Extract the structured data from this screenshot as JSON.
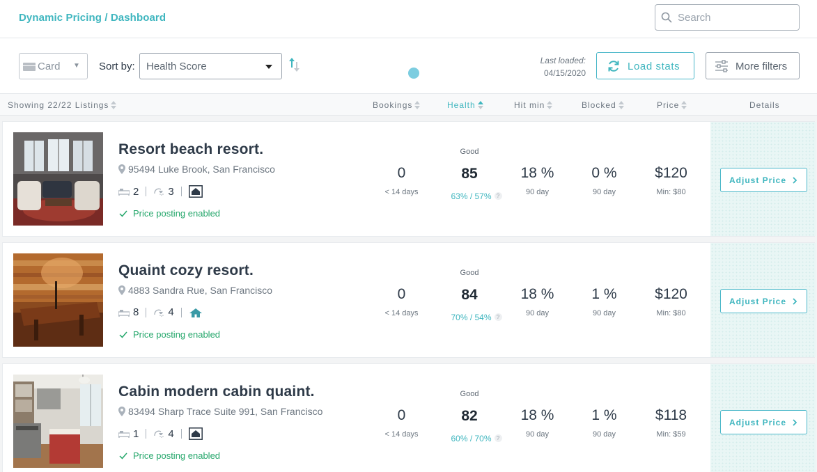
{
  "breadcrumb": {
    "root": "Dynamic Pricing",
    "separator": " / ",
    "current": "Dashboard"
  },
  "search": {
    "placeholder": "Search",
    "value": "",
    "icon": "search-icon"
  },
  "toolbar": {
    "view_select": {
      "value": "Card",
      "icon": "card-view-icon"
    },
    "sort_label": "Sort by:",
    "sort_select": {
      "value": "Health Score"
    },
    "last_loaded_label": "Last loaded:",
    "last_loaded_date": "04/15/2020",
    "load_stats_label": "Load stats",
    "more_filters_label": "More filters"
  },
  "columns": {
    "showing": "Showing 22/22 Listings",
    "bookings": "Bookings",
    "health": "Health",
    "hit_min": "Hit min",
    "blocked": "Blocked",
    "price": "Price",
    "details": "Details"
  },
  "colors": {
    "accent": "#3fb6bf",
    "success": "#23a66a",
    "text": "#2e3a48"
  },
  "listings": [
    {
      "title": "Resort beach resort.",
      "address": "95494 Luke Brook, San Francisco",
      "beds": "2",
      "baths": "3",
      "property_icon": "house-icon",
      "posting": "Price posting enabled",
      "bookings": "0",
      "bookings_sub": "< 14 days",
      "health_label": "Good",
      "health_score": "85",
      "health_pct": "63% / 57%",
      "hit_min": "18 %",
      "hit_min_sub": "90 day",
      "blocked": "0 %",
      "blocked_sub": "90 day",
      "price": "$120",
      "min_price": "Min: $80",
      "adjust_label": "Adjust Price"
    },
    {
      "title": "Quaint cozy resort.",
      "address": "4883 Sandra Rue, San Francisco",
      "beds": "8",
      "baths": "4",
      "property_icon": "tent-house-icon",
      "posting": "Price posting enabled",
      "bookings": "0",
      "bookings_sub": "< 14 days",
      "health_label": "Good",
      "health_score": "84",
      "health_pct": "70% / 54%",
      "hit_min": "18 %",
      "hit_min_sub": "90 day",
      "blocked": "1 %",
      "blocked_sub": "90 day",
      "price": "$120",
      "min_price": "Min: $80",
      "adjust_label": "Adjust Price"
    },
    {
      "title": "Cabin modern cabin quaint.",
      "address": "83494 Sharp Trace Suite 991, San Francisco",
      "beds": "1",
      "baths": "4",
      "property_icon": "house-icon",
      "posting": "Price posting enabled",
      "bookings": "0",
      "bookings_sub": "< 14 days",
      "health_label": "Good",
      "health_score": "82",
      "health_pct": "60% / 70%",
      "hit_min": "18 %",
      "hit_min_sub": "90 day",
      "blocked": "1 %",
      "blocked_sub": "90 day",
      "price": "$118",
      "min_price": "Min: $59",
      "adjust_label": "Adjust Price"
    }
  ]
}
